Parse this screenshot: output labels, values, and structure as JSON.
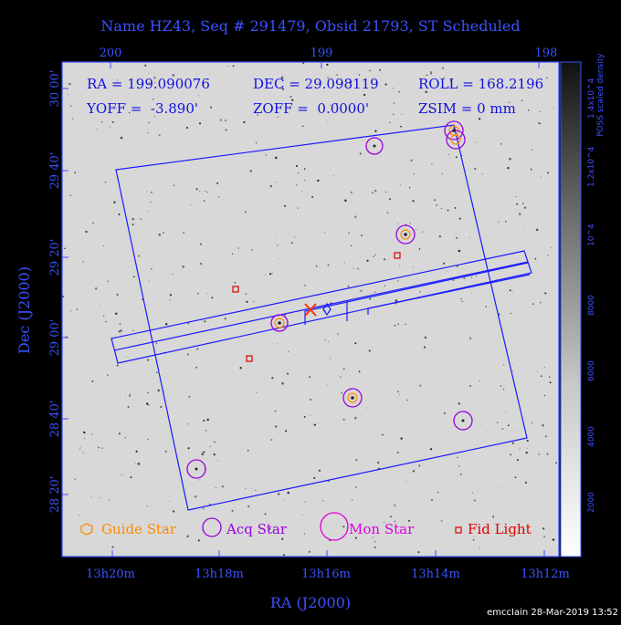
{
  "title": "Name HZ43, Seq # 291479, Obsid 21793, ST Scheduled",
  "info": {
    "ra": "RA = 199.090076",
    "dec": "DEC = 29.098119",
    "roll": "ROLL = 168.2196",
    "yoff": "YOFF =  -3.890'",
    "zoff": "ZOFF =  0.0000'",
    "zsim": "ZSIM = 0 mm"
  },
  "legend": {
    "guide": "Guide Star",
    "acq": "Acq Star",
    "mon": "Mon Star",
    "fid": "Fid Light"
  },
  "footer": "emccIain 28-Mar-2019 13:52",
  "colors": {
    "axis": "#3a52ff",
    "detector": "#1a1aff",
    "guide": "#ff8c00",
    "acq": "#9900dd",
    "mon": "#e000e0",
    "fid": "#dd0000",
    "target": "#ff3300"
  },
  "chart_data": {
    "type": "scatter",
    "title": "Name HZ43, Seq # 291479, Obsid 21793, ST Scheduled",
    "xlabel": "RA (J2000)",
    "ylabel": "Dec (J2000)",
    "x_ticks_bottom": [
      "13h20m",
      "13h18m",
      "13h16m",
      "13h14m",
      "13h12m"
    ],
    "x_ticks_top": [
      "200",
      "199",
      "198"
    ],
    "y_ticks": [
      "28 20'",
      "28 40'",
      "29 00'",
      "29 20'",
      "29 40'",
      "30 00'"
    ],
    "colorbar": {
      "label": "POSS scaled density",
      "ticks": [
        "2000",
        "4000",
        "6000",
        "8000",
        "10^4",
        "1.2x10^4",
        "1.4x10^4"
      ]
    },
    "target": {
      "ra": 199.090076,
      "dec": 29.098119
    },
    "series": [
      {
        "name": "Guide Star",
        "points": [
          [
            198.73,
            29.16
          ],
          [
            198.39,
            29.6
          ],
          [
            198.4,
            29.57
          ]
        ]
      },
      {
        "name": "Acq Star",
        "points": [
          [
            198.73,
            29.16
          ],
          [
            199.45,
            29.01
          ],
          [
            199.04,
            28.64
          ],
          [
            198.62,
            29.54
          ],
          [
            198.39,
            29.6
          ],
          [
            198.4,
            29.57
          ],
          [
            198.34,
            28.86
          ],
          [
            199.85,
            28.42
          ]
        ]
      },
      {
        "name": "Fid Light",
        "points": [
          [
            199.7,
            29.12
          ],
          [
            198.78,
            29.2
          ],
          [
            199.63,
            28.93
          ]
        ]
      }
    ]
  }
}
